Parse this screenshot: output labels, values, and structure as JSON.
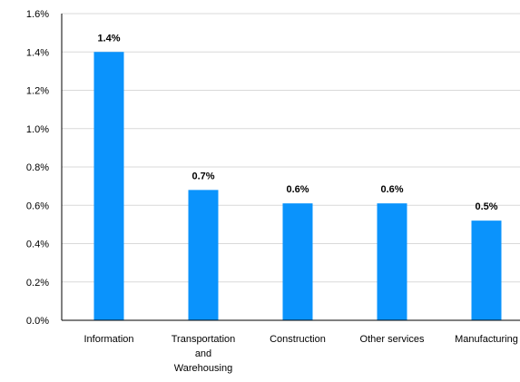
{
  "chart_data": {
    "type": "bar",
    "title": "",
    "xlabel": "",
    "ylabel": "",
    "categories": [
      [
        "Information"
      ],
      [
        "Transportation",
        "and",
        "Warehousing"
      ],
      [
        "Construction"
      ],
      [
        "Other services"
      ],
      [
        "Manufacturing"
      ]
    ],
    "values": [
      1.4,
      0.68,
      0.61,
      0.61,
      0.52
    ],
    "data_labels": [
      "1.4%",
      "0.7%",
      "0.6%",
      "0.6%",
      "0.5%"
    ],
    "ylim": [
      0,
      1.6
    ],
    "yticks": [
      0,
      0.2,
      0.4,
      0.6,
      0.8,
      1.0,
      1.2,
      1.4,
      1.6
    ],
    "ytick_labels": [
      "0.0%",
      "0.2%",
      "0.4%",
      "0.6%",
      "0.8%",
      "1.0%",
      "1.2%",
      "1.4%",
      "1.6%"
    ],
    "grid": true,
    "legend": "none",
    "bar_color": "#0a93fc"
  }
}
